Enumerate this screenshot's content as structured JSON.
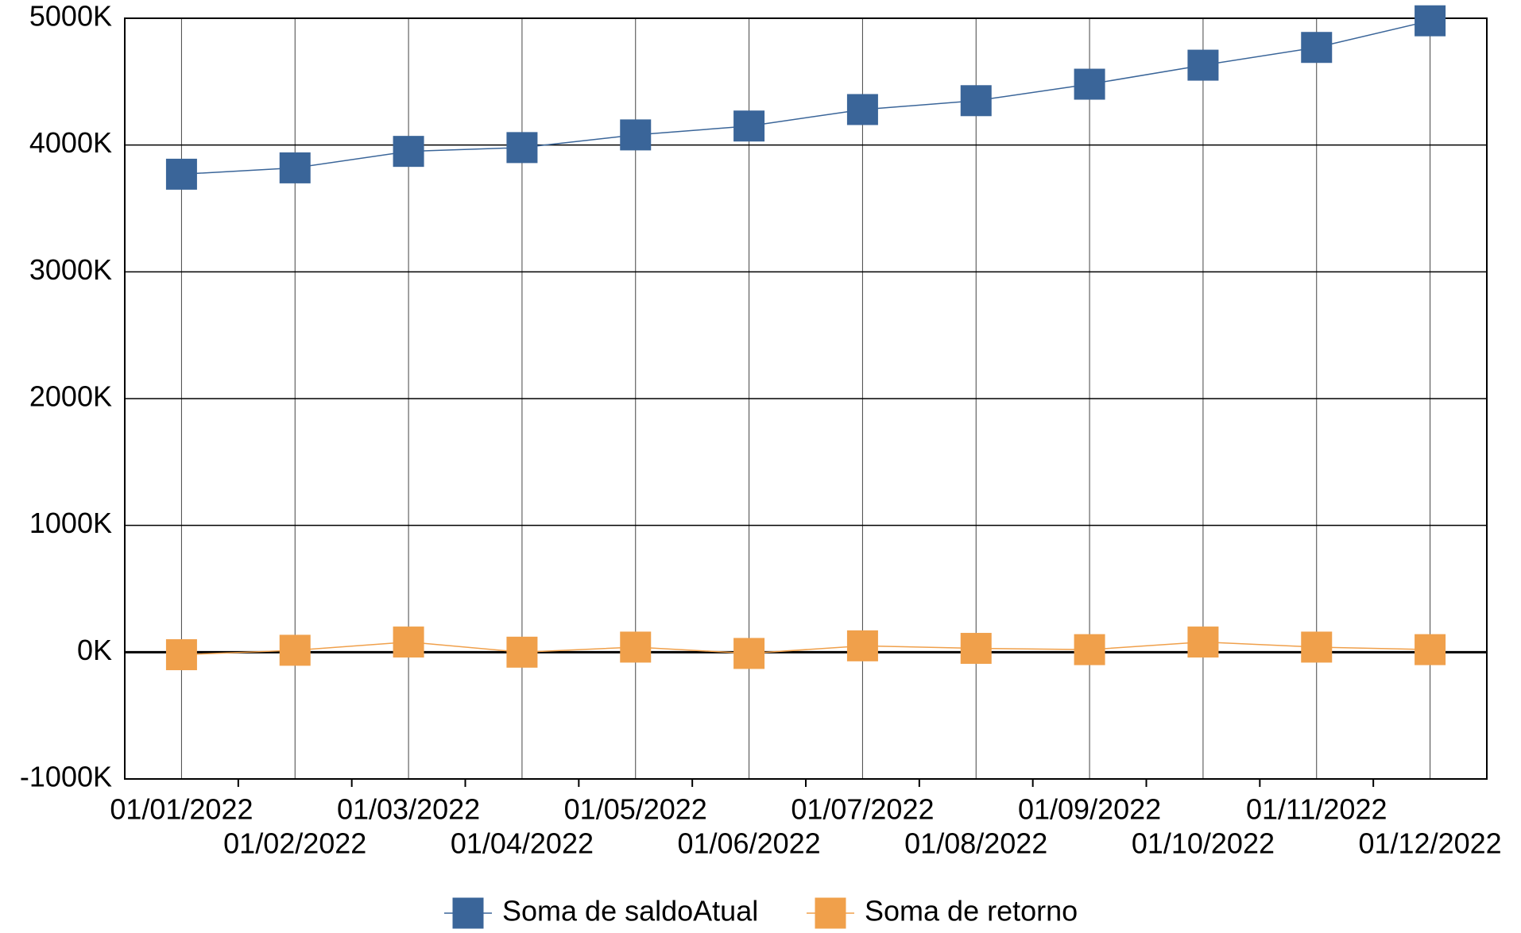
{
  "chart_data": {
    "type": "line",
    "categories": [
      "01/01/2022",
      "01/02/2022",
      "01/03/2022",
      "01/04/2022",
      "01/05/2022",
      "01/06/2022",
      "01/07/2022",
      "01/08/2022",
      "01/09/2022",
      "01/10/2022",
      "01/11/2022",
      "01/12/2022"
    ],
    "series": [
      {
        "name": "Soma de saldoAtual",
        "color": "#3a6599",
        "values": [
          3770,
          3820,
          3950,
          3980,
          4080,
          4150,
          4280,
          4350,
          4480,
          4630,
          4770,
          4980
        ]
      },
      {
        "name": "Soma de retorno",
        "color": "#f0a04b",
        "values": [
          -20,
          15,
          80,
          0,
          40,
          -10,
          50,
          30,
          20,
          80,
          40,
          20
        ]
      }
    ],
    "ylim": [
      -1000,
      5000
    ],
    "yticks": [
      {
        "value": -1000,
        "label": "-1000K"
      },
      {
        "value": 0,
        "label": "0K"
      },
      {
        "value": 1000,
        "label": "1000K"
      },
      {
        "value": 2000,
        "label": "2000K"
      },
      {
        "value": 3000,
        "label": "3000K"
      },
      {
        "value": 4000,
        "label": "4000K"
      },
      {
        "value": 5000,
        "label": "5000K"
      }
    ],
    "grid": true,
    "legend": "bottom"
  }
}
